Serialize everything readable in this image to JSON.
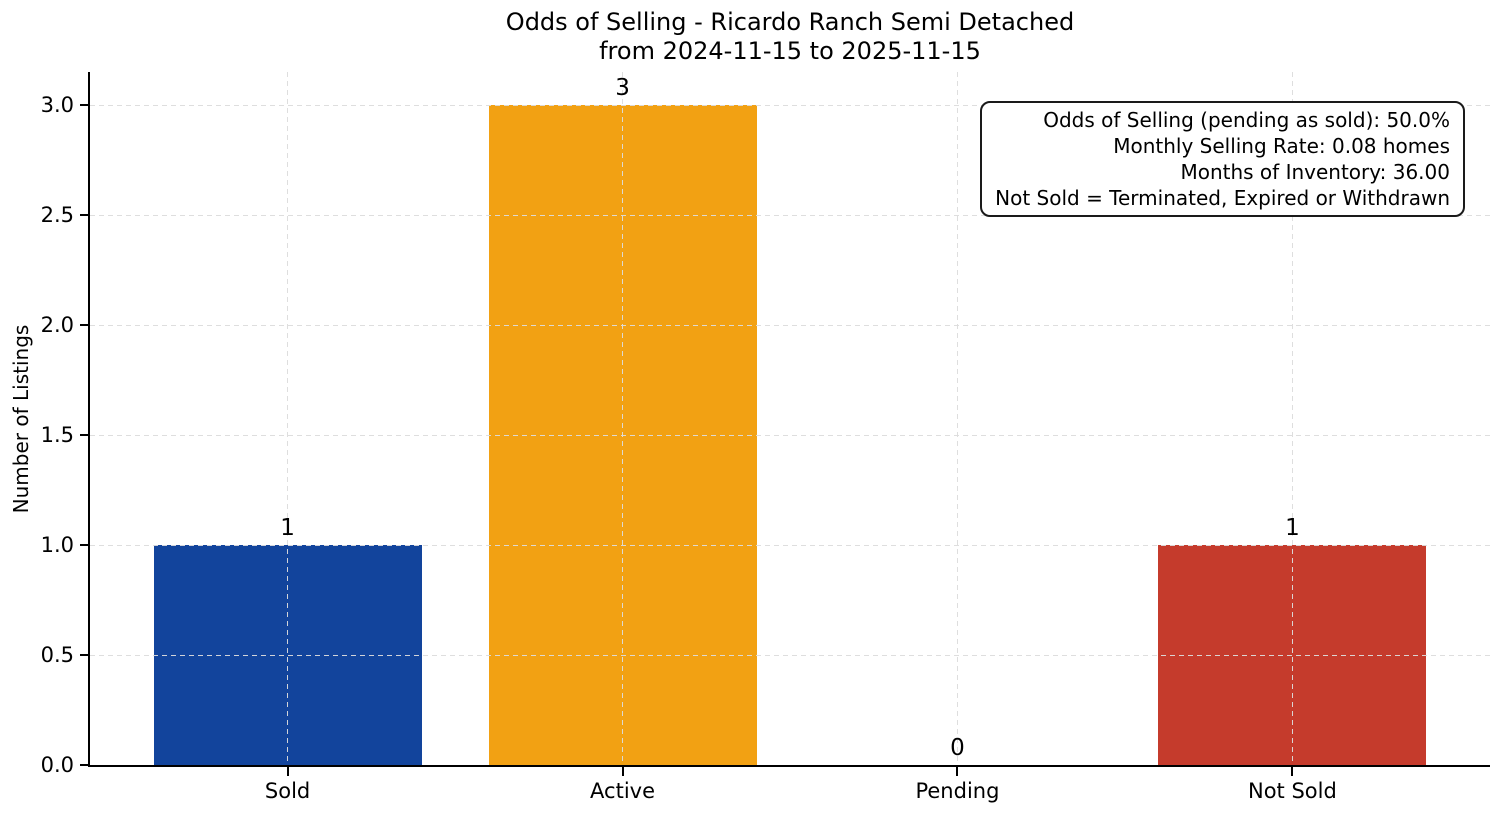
{
  "chart_data": {
    "type": "bar",
    "title": "Odds of Selling - Ricardo Ranch Semi Detached",
    "subtitle": "from 2024-11-15 to 2025-11-15",
    "ylabel": "Number of Listings",
    "xlabel": "",
    "categories": [
      "Sold",
      "Active",
      "Pending",
      "Not Sold"
    ],
    "values": [
      1,
      3,
      0,
      1
    ],
    "value_labels": [
      "1",
      "3",
      "0",
      "1"
    ],
    "bar_colors": [
      "#12449c",
      "#f2a113",
      null,
      "#c53b2c"
    ],
    "yticks": [
      0.0,
      0.5,
      1.0,
      1.5,
      2.0,
      2.5,
      3.0
    ],
    "ytick_labels": [
      "0.0",
      "0.5",
      "1.0",
      "1.5",
      "2.0",
      "2.5",
      "3.0"
    ],
    "ylim": [
      0,
      3.15
    ],
    "grid": true,
    "grid_color": "#dcdcdc",
    "axis_color": "#000000",
    "legend_position": "none",
    "annotation_box": {
      "lines": [
        "Odds of Selling (pending as sold): 50.0%",
        "Monthly Selling Rate: 0.08 homes",
        "Months of Inventory: 36.00",
        "Not Sold = Terminated, Expired or Withdrawn"
      ]
    }
  }
}
